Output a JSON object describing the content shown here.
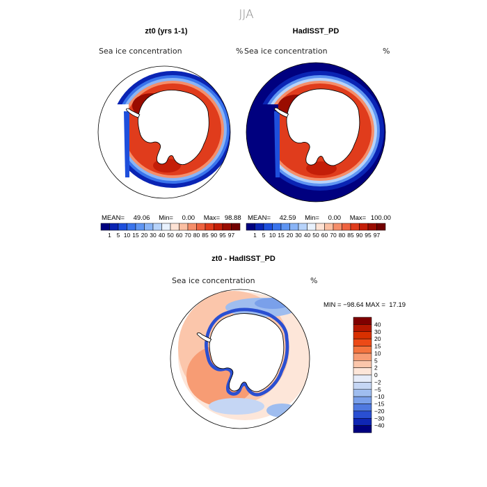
{
  "season": "JJA",
  "top_panels": [
    {
      "title": "zt0 (yrs 1-1)",
      "variable": "Sea ice concentration",
      "unit": "%",
      "stats": {
        "mean_label": "MEAN=",
        "mean": "49.06",
        "min_label": "Min=",
        "min": "0.00",
        "max_label": "Max=",
        "max": "98.88"
      }
    },
    {
      "title": "HadISST_PD",
      "variable": "Sea ice concentration",
      "unit": "%",
      "stats": {
        "mean_label": "MEAN=",
        "mean": "42.59",
        "min_label": "Min=",
        "min": "0.00",
        "max_label": "Max=",
        "max": "100.00"
      }
    }
  ],
  "concentration_scale": {
    "labels": [
      "1",
      "5",
      "10",
      "15",
      "20",
      "30",
      "40",
      "50",
      "60",
      "70",
      "80",
      "85",
      "90",
      "95",
      "97"
    ],
    "colors": [
      "#00007f",
      "#0a24b4",
      "#1e4fdc",
      "#3a74ec",
      "#5f95f2",
      "#89b4f6",
      "#b7d3fa",
      "#e8f1fd",
      "#fde2d4",
      "#fbbfa2",
      "#f58e6a",
      "#ee6340",
      "#e03c1c",
      "#c41e08",
      "#9a0c00",
      "#720000"
    ]
  },
  "diff_panel": {
    "title": "zt0 - HadISST_PD",
    "variable": "Sea ice concentration",
    "unit": "%",
    "min_max_text": "MIN = −98.64 MAX =  17.19"
  },
  "diff_scale": {
    "labels": [
      "40",
      "30",
      "20",
      "15",
      "10",
      "5",
      "2",
      "0",
      "−2",
      "−5",
      "−10",
      "−15",
      "−20",
      "−30",
      "−40"
    ],
    "colors": [
      "#7f0000",
      "#b41700",
      "#d83000",
      "#ec4a17",
      "#f4743f",
      "#f79c74",
      "#fbc6ab",
      "#fde6d9",
      "#e6ecf9",
      "#c5d6f4",
      "#9fbdef",
      "#7aa0ea",
      "#4f79e0",
      "#2a4fd2",
      "#0f26b4",
      "#00007f"
    ]
  },
  "colors": {
    "land": "#ffffff",
    "coast": "#000000",
    "ocean_diff": "#ffffff"
  }
}
